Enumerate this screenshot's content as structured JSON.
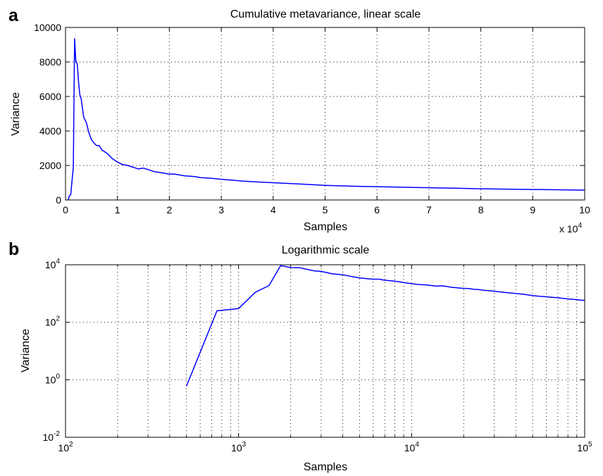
{
  "chart_data": [
    {
      "panel": "a",
      "type": "line",
      "title": "Cumulative metavariance, linear scale",
      "xlabel": "Samples",
      "ylabel": "Variance",
      "x_multiplier": "x 10",
      "x_multiplier_exp": "4",
      "xlim": [
        0,
        100000
      ],
      "ylim": [
        0,
        10000
      ],
      "xscale": "linear",
      "yscale": "linear",
      "grid": true,
      "xticks": [
        0,
        10000,
        20000,
        30000,
        40000,
        50000,
        60000,
        70000,
        80000,
        90000,
        100000
      ],
      "xtick_labels": [
        "0",
        "1",
        "2",
        "3",
        "4",
        "5",
        "6",
        "7",
        "8",
        "9",
        "10"
      ],
      "yticks": [
        0,
        2000,
        4000,
        6000,
        8000,
        10000
      ],
      "ytick_labels": [
        "0",
        "2000",
        "4000",
        "6000",
        "8000",
        "10000"
      ],
      "series": [
        {
          "color": "#0000ff",
          "x": [
            500,
            750,
            1000,
            1250,
            1500,
            1750,
            2000,
            2250,
            2500,
            2750,
            3000,
            3500,
            4000,
            4500,
            5000,
            5500,
            6000,
            6500,
            7000,
            7500,
            8000,
            9000,
            10000,
            11000,
            12000,
            13000,
            14000,
            15000,
            16000,
            17000,
            18000,
            19000,
            20000,
            21000,
            22000,
            23000,
            24000,
            25000,
            26000,
            28000,
            30000,
            32000,
            34000,
            36000,
            38000,
            40000,
            45000,
            50000,
            55000,
            60000,
            65000,
            70000,
            75000,
            80000,
            85000,
            90000,
            95000,
            100000
          ],
          "y": [
            0.6,
            250,
            300,
            1100,
            1900,
            9350,
            8000,
            7900,
            6900,
            6100,
            5900,
            4800,
            4500,
            3900,
            3500,
            3300,
            3150,
            3150,
            2900,
            2800,
            2700,
            2400,
            2200,
            2050,
            2000,
            1900,
            1800,
            1850,
            1750,
            1650,
            1600,
            1550,
            1500,
            1500,
            1450,
            1400,
            1380,
            1350,
            1300,
            1260,
            1200,
            1150,
            1100,
            1060,
            1030,
            1000,
            930,
            850,
            800,
            770,
            740,
            710,
            680,
            650,
            630,
            610,
            590,
            570
          ]
        }
      ]
    },
    {
      "panel": "b",
      "type": "line",
      "title": "Logarithmic scale",
      "xlabel": "Samples",
      "ylabel": "Variance",
      "xlim": [
        100,
        100000
      ],
      "ylim": [
        0.01,
        10000
      ],
      "xscale": "log",
      "yscale": "log",
      "grid": true,
      "xticks": [
        100,
        1000,
        10000,
        100000
      ],
      "xtick_base": "10",
      "xtick_exps": [
        "2",
        "3",
        "4",
        "5"
      ],
      "yticks": [
        0.01,
        1,
        100,
        10000
      ],
      "ytick_base": "10",
      "ytick_exps": [
        "-2",
        "0",
        "2",
        "4"
      ],
      "series": [
        {
          "color": "#0000ff",
          "x": [
            500,
            750,
            1000,
            1250,
            1500,
            1750,
            2000,
            2250,
            2500,
            2750,
            3000,
            3500,
            4000,
            4500,
            5000,
            5500,
            6000,
            6500,
            7000,
            7500,
            8000,
            9000,
            10000,
            11000,
            12000,
            13000,
            14000,
            15000,
            16000,
            17000,
            18000,
            19000,
            20000,
            21000,
            22000,
            23000,
            24000,
            25000,
            26000,
            28000,
            30000,
            32000,
            34000,
            36000,
            38000,
            40000,
            45000,
            50000,
            55000,
            60000,
            65000,
            70000,
            75000,
            80000,
            85000,
            90000,
            95000,
            100000
          ],
          "y": [
            0.6,
            250,
            300,
            1100,
            1900,
            9350,
            8000,
            7900,
            6900,
            6100,
            5900,
            4800,
            4500,
            3900,
            3500,
            3300,
            3150,
            3150,
            2900,
            2800,
            2700,
            2400,
            2200,
            2050,
            2000,
            1900,
            1800,
            1850,
            1750,
            1650,
            1600,
            1550,
            1500,
            1500,
            1450,
            1400,
            1380,
            1350,
            1300,
            1260,
            1200,
            1150,
            1100,
            1060,
            1030,
            1000,
            930,
            850,
            800,
            770,
            740,
            710,
            680,
            650,
            630,
            610,
            590,
            570
          ]
        }
      ]
    }
  ]
}
